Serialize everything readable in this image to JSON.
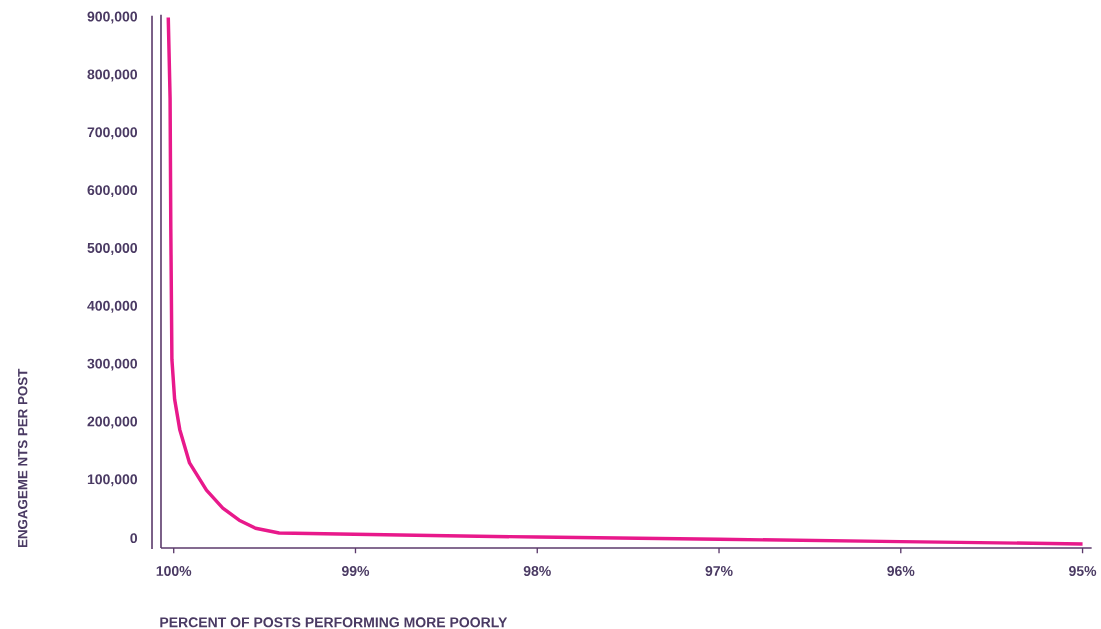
{
  "chart_data": {
    "type": "line",
    "xlabel": "PERCENT OF POSTS PERFORMING MORE POORLY",
    "ylabel": "ENGAGEME NTS PER POST",
    "series": [
      {
        "color": "#e8198b",
        "x": [
          100.03,
          100.02,
          100.016,
          100.01,
          99.995,
          99.967,
          99.913,
          99.82,
          99.73,
          99.64,
          99.55,
          99.42,
          99.09,
          98.5,
          98.0,
          97.0,
          96.0,
          95.0
        ],
        "values": [
          900000,
          761000,
          535000,
          309000,
          240000,
          188000,
          130000,
          83000,
          52000,
          31000,
          17000,
          9000,
          7000,
          4000,
          2000,
          -2000,
          -6000,
          -10000
        ]
      }
    ],
    "xlim": [
      100.07,
      94.95
    ],
    "ylim": [
      -17000,
      905000
    ],
    "xticks": [
      {
        "value": 100,
        "label": "100%"
      },
      {
        "value": 99,
        "label": "99%"
      },
      {
        "value": 98,
        "label": "98%"
      },
      {
        "value": 97,
        "label": "97%"
      },
      {
        "value": 96,
        "label": "96%"
      },
      {
        "value": 95,
        "label": "95%"
      }
    ],
    "yticks": [
      0,
      {
        "value": 100000,
        "label": "100,000"
      },
      {
        "value": 200000,
        "label": "200,000"
      },
      {
        "value": 300000,
        "label": "300,000"
      },
      {
        "value": 400000,
        "label": "400,000"
      },
      {
        "value": 500000,
        "label": "500,000"
      },
      {
        "value": 600000,
        "label": "600,000"
      },
      {
        "value": 700000,
        "label": "700,000"
      },
      {
        "value": 800000,
        "label": "800,000"
      },
      {
        "value": 900000,
        "label": "900,000"
      }
    ],
    "grid": false,
    "marker": "none",
    "line_style": "solid"
  }
}
